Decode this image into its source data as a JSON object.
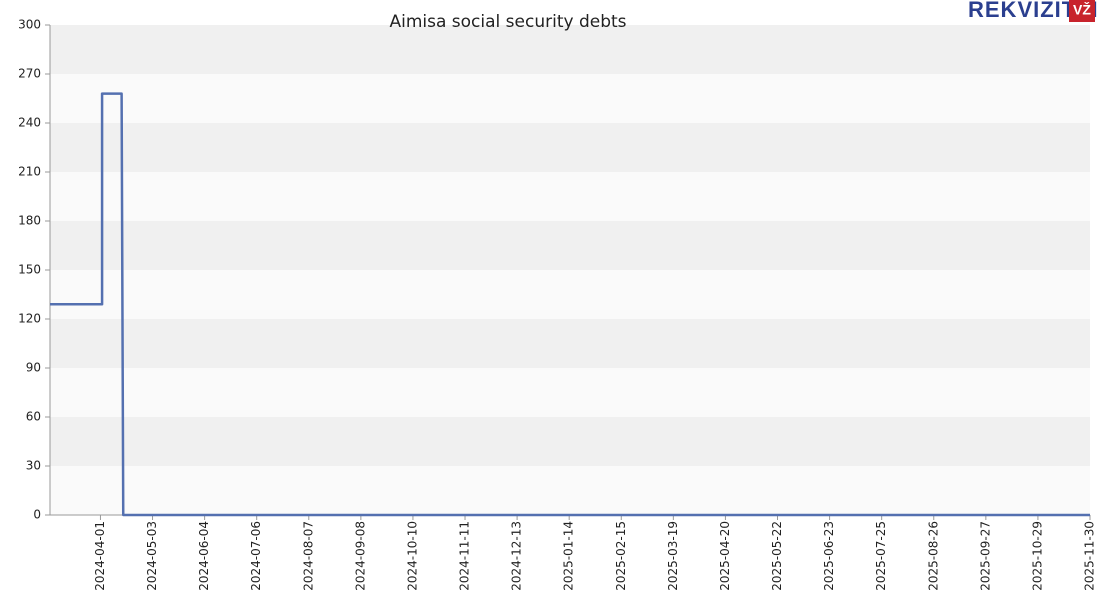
{
  "chart_data": {
    "type": "line",
    "title": "Aimisa social security debts",
    "logo": {
      "text": "REKVIZITAI",
      "badge": "VŽ"
    },
    "x": [
      "2024-03-01",
      "2024-04-02",
      "2024-04-02",
      "2024-04-14",
      "2024-04-15",
      "2025-11-30"
    ],
    "series": [
      {
        "name": "Social security debts",
        "color": "#5470b0",
        "values": [
          129,
          129,
          258,
          258,
          0,
          0
        ]
      }
    ],
    "xlim": [
      "2024-03-01",
      "2025-11-30"
    ],
    "xticks": [
      "2024-04-01",
      "2024-05-03",
      "2024-06-04",
      "2024-07-06",
      "2024-08-07",
      "2024-09-08",
      "2024-10-10",
      "2024-11-11",
      "2024-12-13",
      "2025-01-14",
      "2025-02-15",
      "2025-03-19",
      "2025-04-20",
      "2025-05-22",
      "2025-06-23",
      "2025-07-25",
      "2025-08-26",
      "2025-09-27",
      "2025-10-29",
      "2025-11-30"
    ],
    "ylim": [
      0,
      300
    ],
    "yticks": [
      0,
      30,
      60,
      90,
      120,
      150,
      180,
      210,
      240,
      270,
      300
    ],
    "grid": true
  }
}
